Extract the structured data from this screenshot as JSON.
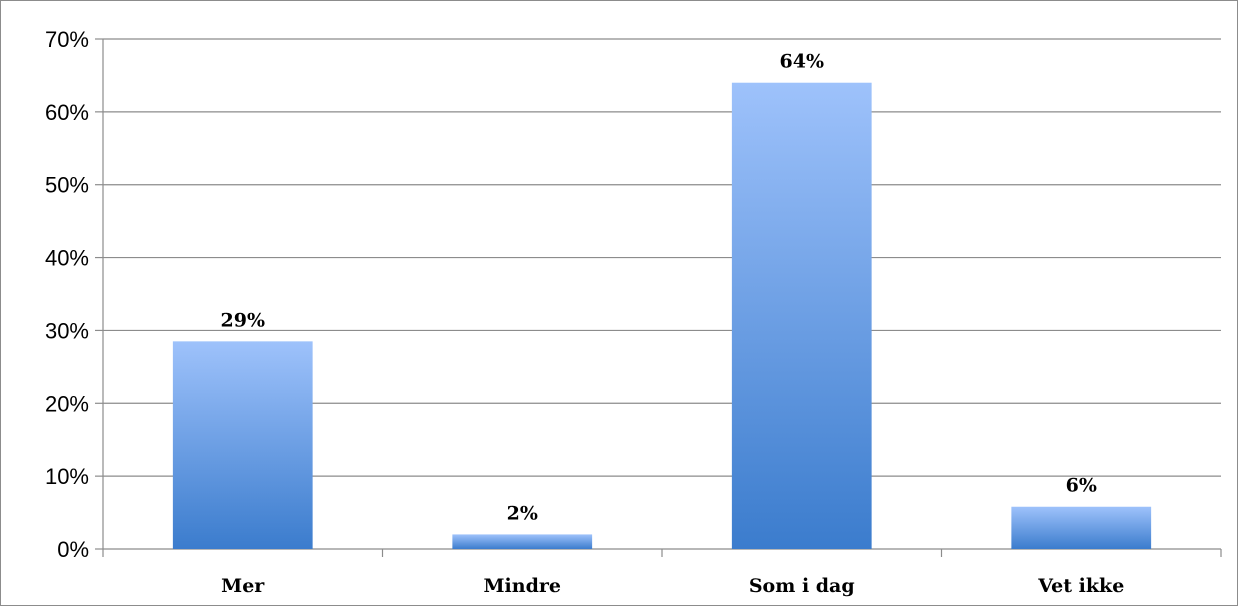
{
  "chart_data": {
    "type": "bar",
    "categories": [
      "Mer",
      "Mindre",
      "Som i dag",
      "Vet ikke"
    ],
    "values": [
      0.285,
      0.02,
      0.64,
      0.058
    ],
    "data_labels": [
      "29%",
      "2%",
      "64%",
      "6%"
    ],
    "ylim": [
      0,
      0.7
    ],
    "y_ticks": [
      0,
      0.1,
      0.2,
      0.3,
      0.4,
      0.5,
      0.6,
      0.7
    ],
    "y_tick_labels": [
      "0%",
      "10%",
      "20%",
      "30%",
      "40%",
      "50%",
      "60%",
      "70%"
    ],
    "grid": true,
    "legend": "none",
    "colors": {
      "bar_top": "#9ec2fb",
      "bar_bottom": "#3b7ccd",
      "grid": "#8c8c8c",
      "axis": "#8c8c8c"
    }
  }
}
